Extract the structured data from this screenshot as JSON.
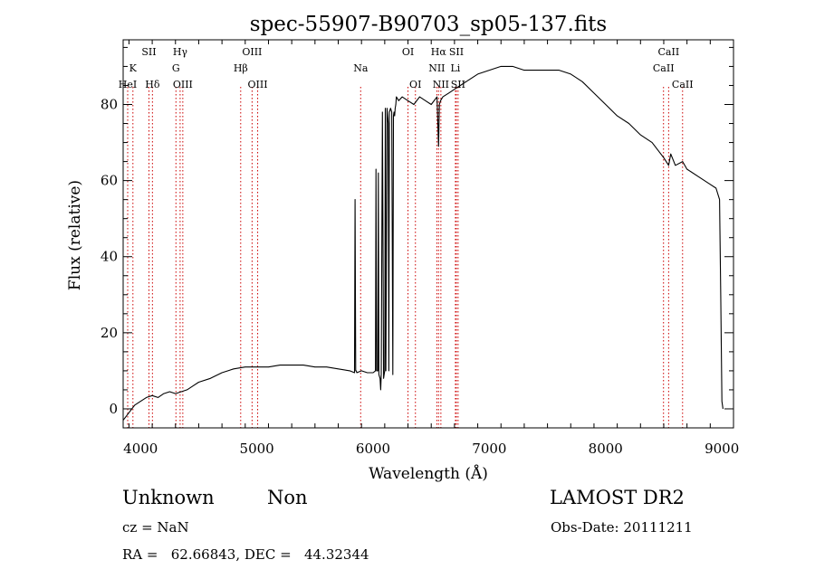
{
  "chart_data": {
    "type": "line",
    "title": "spec-55907-B90703_sp05-137.fits",
    "xlabel": "Wavelength (Å)",
    "ylabel": "Flux (relative)",
    "xlim": [
      3850,
      9100
    ],
    "ylim": [
      -5,
      97
    ],
    "xticks": [
      4000,
      5000,
      6000,
      7000,
      8000,
      9000
    ],
    "yticks": [
      0,
      20,
      40,
      60,
      80
    ],
    "grid": false,
    "line_color": "#000000",
    "marker_color": "#cc0000",
    "series": [
      {
        "x": [
          3850,
          3900,
          3950,
          4000,
          4050,
          4100,
          4150,
          4200,
          4250,
          4300,
          4350,
          4400,
          4450,
          4500,
          4600,
          4700,
          4800,
          4900,
          5000,
          5100,
          5200,
          5300,
          5400,
          5500,
          5600,
          5700,
          5800,
          5840,
          5845,
          5850,
          5855,
          5860,
          5900,
          5950,
          6000,
          6020,
          6025,
          6030,
          6040,
          6045,
          6050,
          6060,
          6065,
          6070,
          6080,
          6090,
          6095,
          6100,
          6105,
          6110,
          6120,
          6130,
          6135,
          6140,
          6150,
          6160,
          6170,
          6175,
          6180,
          6185,
          6190,
          6195,
          6200,
          6220,
          6250,
          6300,
          6350,
          6400,
          6450,
          6500,
          6550,
          6563,
          6570,
          6580,
          6600,
          6650,
          6700,
          6750,
          6800,
          6900,
          7000,
          7100,
          7200,
          7300,
          7400,
          7500,
          7600,
          7700,
          7800,
          7900,
          8000,
          8100,
          8200,
          8300,
          8400,
          8500,
          8542,
          8560,
          8600,
          8662,
          8700,
          8800,
          8900,
          8950,
          8980,
          8990,
          9000,
          9010
        ],
        "y": [
          -3,
          -1,
          1,
          2,
          3,
          3.5,
          3,
          4,
          4.5,
          4,
          4.5,
          5,
          6,
          7,
          8,
          9.5,
          10.5,
          11,
          11,
          11,
          11.5,
          11.5,
          11.5,
          11,
          11,
          10.5,
          10,
          9.5,
          55,
          10,
          10,
          9.5,
          10,
          9.5,
          9.5,
          10,
          63,
          10,
          10,
          62,
          9,
          8,
          5,
          9,
          78,
          8,
          9,
          10,
          79,
          10,
          79,
          75,
          10,
          78,
          79,
          78,
          9,
          77,
          78,
          77,
          79,
          80,
          82,
          81,
          82,
          81,
          80,
          82,
          81,
          80,
          82,
          69,
          80,
          81,
          82,
          83,
          84,
          85,
          86,
          88,
          89,
          90,
          90,
          89,
          89,
          89,
          89,
          88,
          86,
          83,
          80,
          77,
          75,
          72,
          70,
          66,
          64,
          67,
          64,
          65,
          63,
          61,
          59,
          58,
          55,
          30,
          2,
          0
        ]
      }
    ],
    "lines": [
      {
        "wl": 3889,
        "label": "HeI",
        "row": 3
      },
      {
        "wl": 3934,
        "label": "K",
        "row": 2
      },
      {
        "wl": 4072,
        "label": "SII",
        "row": 1
      },
      {
        "wl": 4102,
        "label": "Hδ",
        "row": 3
      },
      {
        "wl": 4304,
        "label": "G",
        "row": 2
      },
      {
        "wl": 4340,
        "label": "Hγ",
        "row": 1
      },
      {
        "wl": 4363,
        "label": "OIII",
        "row": 3
      },
      {
        "wl": 4861,
        "label": "Hβ",
        "row": 2
      },
      {
        "wl": 4959,
        "label": "OIII",
        "row": 1
      },
      {
        "wl": 5007,
        "label": "OIII",
        "row": 3
      },
      {
        "wl": 5893,
        "label": "Na",
        "row": 2
      },
      {
        "wl": 6300,
        "label": "OI",
        "row": 1
      },
      {
        "wl": 6364,
        "label": "OI",
        "row": 3
      },
      {
        "wl": 6548,
        "label": "NII",
        "row": 2
      },
      {
        "wl": 6563,
        "label": "Hα",
        "row": 1
      },
      {
        "wl": 6583,
        "label": "NII",
        "row": 3
      },
      {
        "wl": 6708,
        "label": "Li",
        "row": 2
      },
      {
        "wl": 6716,
        "label": "SII",
        "row": 1
      },
      {
        "wl": 6731,
        "label": "SII",
        "row": 3
      },
      {
        "wl": 8498,
        "label": "CaII",
        "row": 2
      },
      {
        "wl": 8542,
        "label": "CaII",
        "row": 1
      },
      {
        "wl": 8662,
        "label": "CaII",
        "row": 3
      }
    ]
  },
  "info": {
    "class_label": "Unknown",
    "subclass_label": "Non",
    "survey": "LAMOST DR2",
    "cz": "cz = NaN",
    "obs_date": "Obs-Date: 20111211",
    "coords": "RA =   62.66843, DEC =   44.32344"
  }
}
